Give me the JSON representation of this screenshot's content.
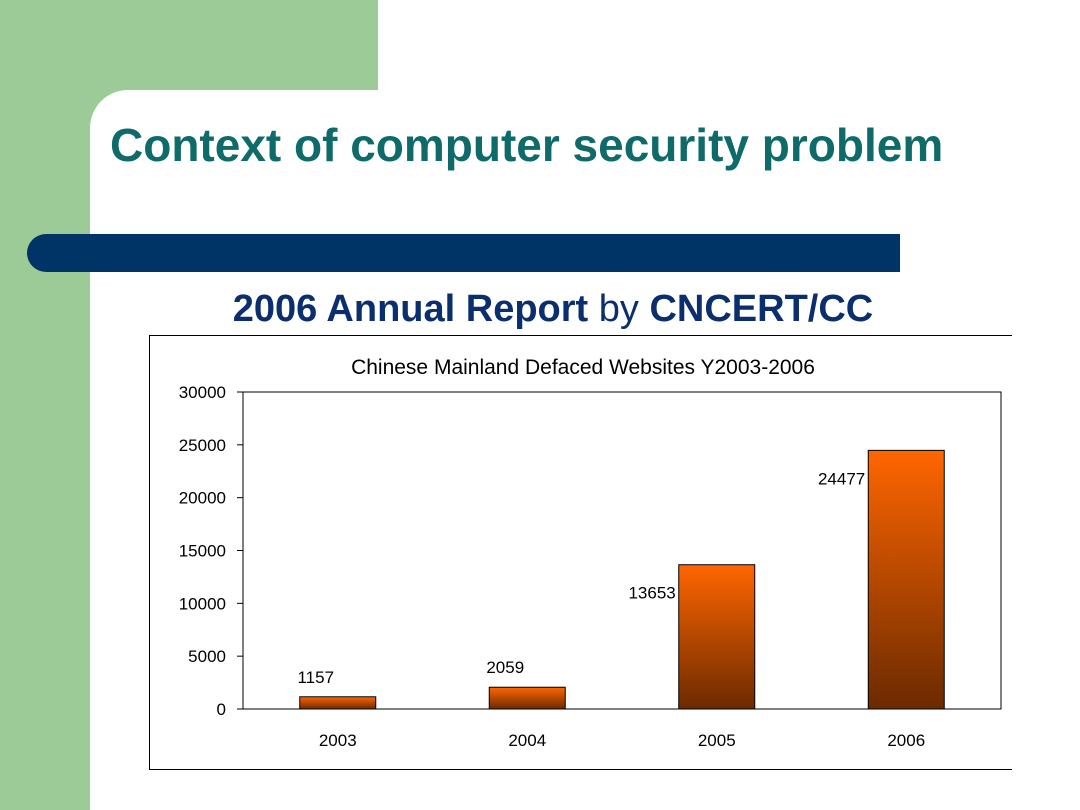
{
  "slide": {
    "title": "Context of computer security problem",
    "subtitle_bold1": "2006 Annual Report",
    "subtitle_plain": " by ",
    "subtitle_bold2": "CNCERT/CC"
  },
  "colors": {
    "accent_green": "#9ccb98",
    "title_teal": "#0f6a6a",
    "bar_navy": "#003366",
    "bar_top": "#ff6600",
    "bar_bottom": "#6b2a00"
  },
  "chart_data": {
    "type": "bar",
    "title": "Chinese Mainland Defaced Websites Y2003-2006",
    "categories": [
      "2003",
      "2004",
      "2005",
      "2006"
    ],
    "values": [
      1157,
      2059,
      13653,
      24477
    ],
    "data_labels": [
      "1157",
      "2059",
      "13653",
      "24477"
    ],
    "ylim": [
      0,
      30000
    ],
    "yticks": [
      0,
      5000,
      10000,
      15000,
      20000,
      25000,
      30000
    ],
    "xlabel": "",
    "ylabel": "",
    "grid": false,
    "legend": "none"
  }
}
